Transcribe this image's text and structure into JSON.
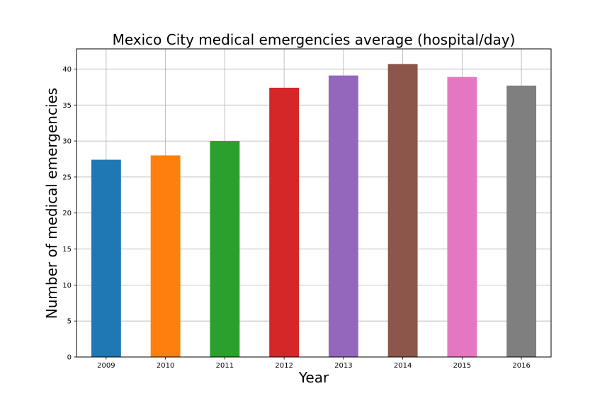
{
  "chart_data": {
    "type": "bar",
    "title": "Mexico City medical emergencies average (hospital/day)",
    "xlabel": "Year",
    "ylabel": "Number of medical emergencies",
    "categories": [
      "2009",
      "2010",
      "2011",
      "2012",
      "2013",
      "2014",
      "2015",
      "2016"
    ],
    "values": [
      27.4,
      28.0,
      30.0,
      37.4,
      39.1,
      40.7,
      38.9,
      37.7
    ],
    "colors": [
      "#1f77b4",
      "#ff7f0e",
      "#2ca02c",
      "#d62728",
      "#9467bd",
      "#8c564b",
      "#e377c2",
      "#7f7f7f"
    ],
    "ylim": [
      0,
      42.8
    ],
    "yticks": [
      0,
      5,
      10,
      15,
      20,
      25,
      30,
      35,
      40
    ],
    "grid": true,
    "legend": "none"
  }
}
